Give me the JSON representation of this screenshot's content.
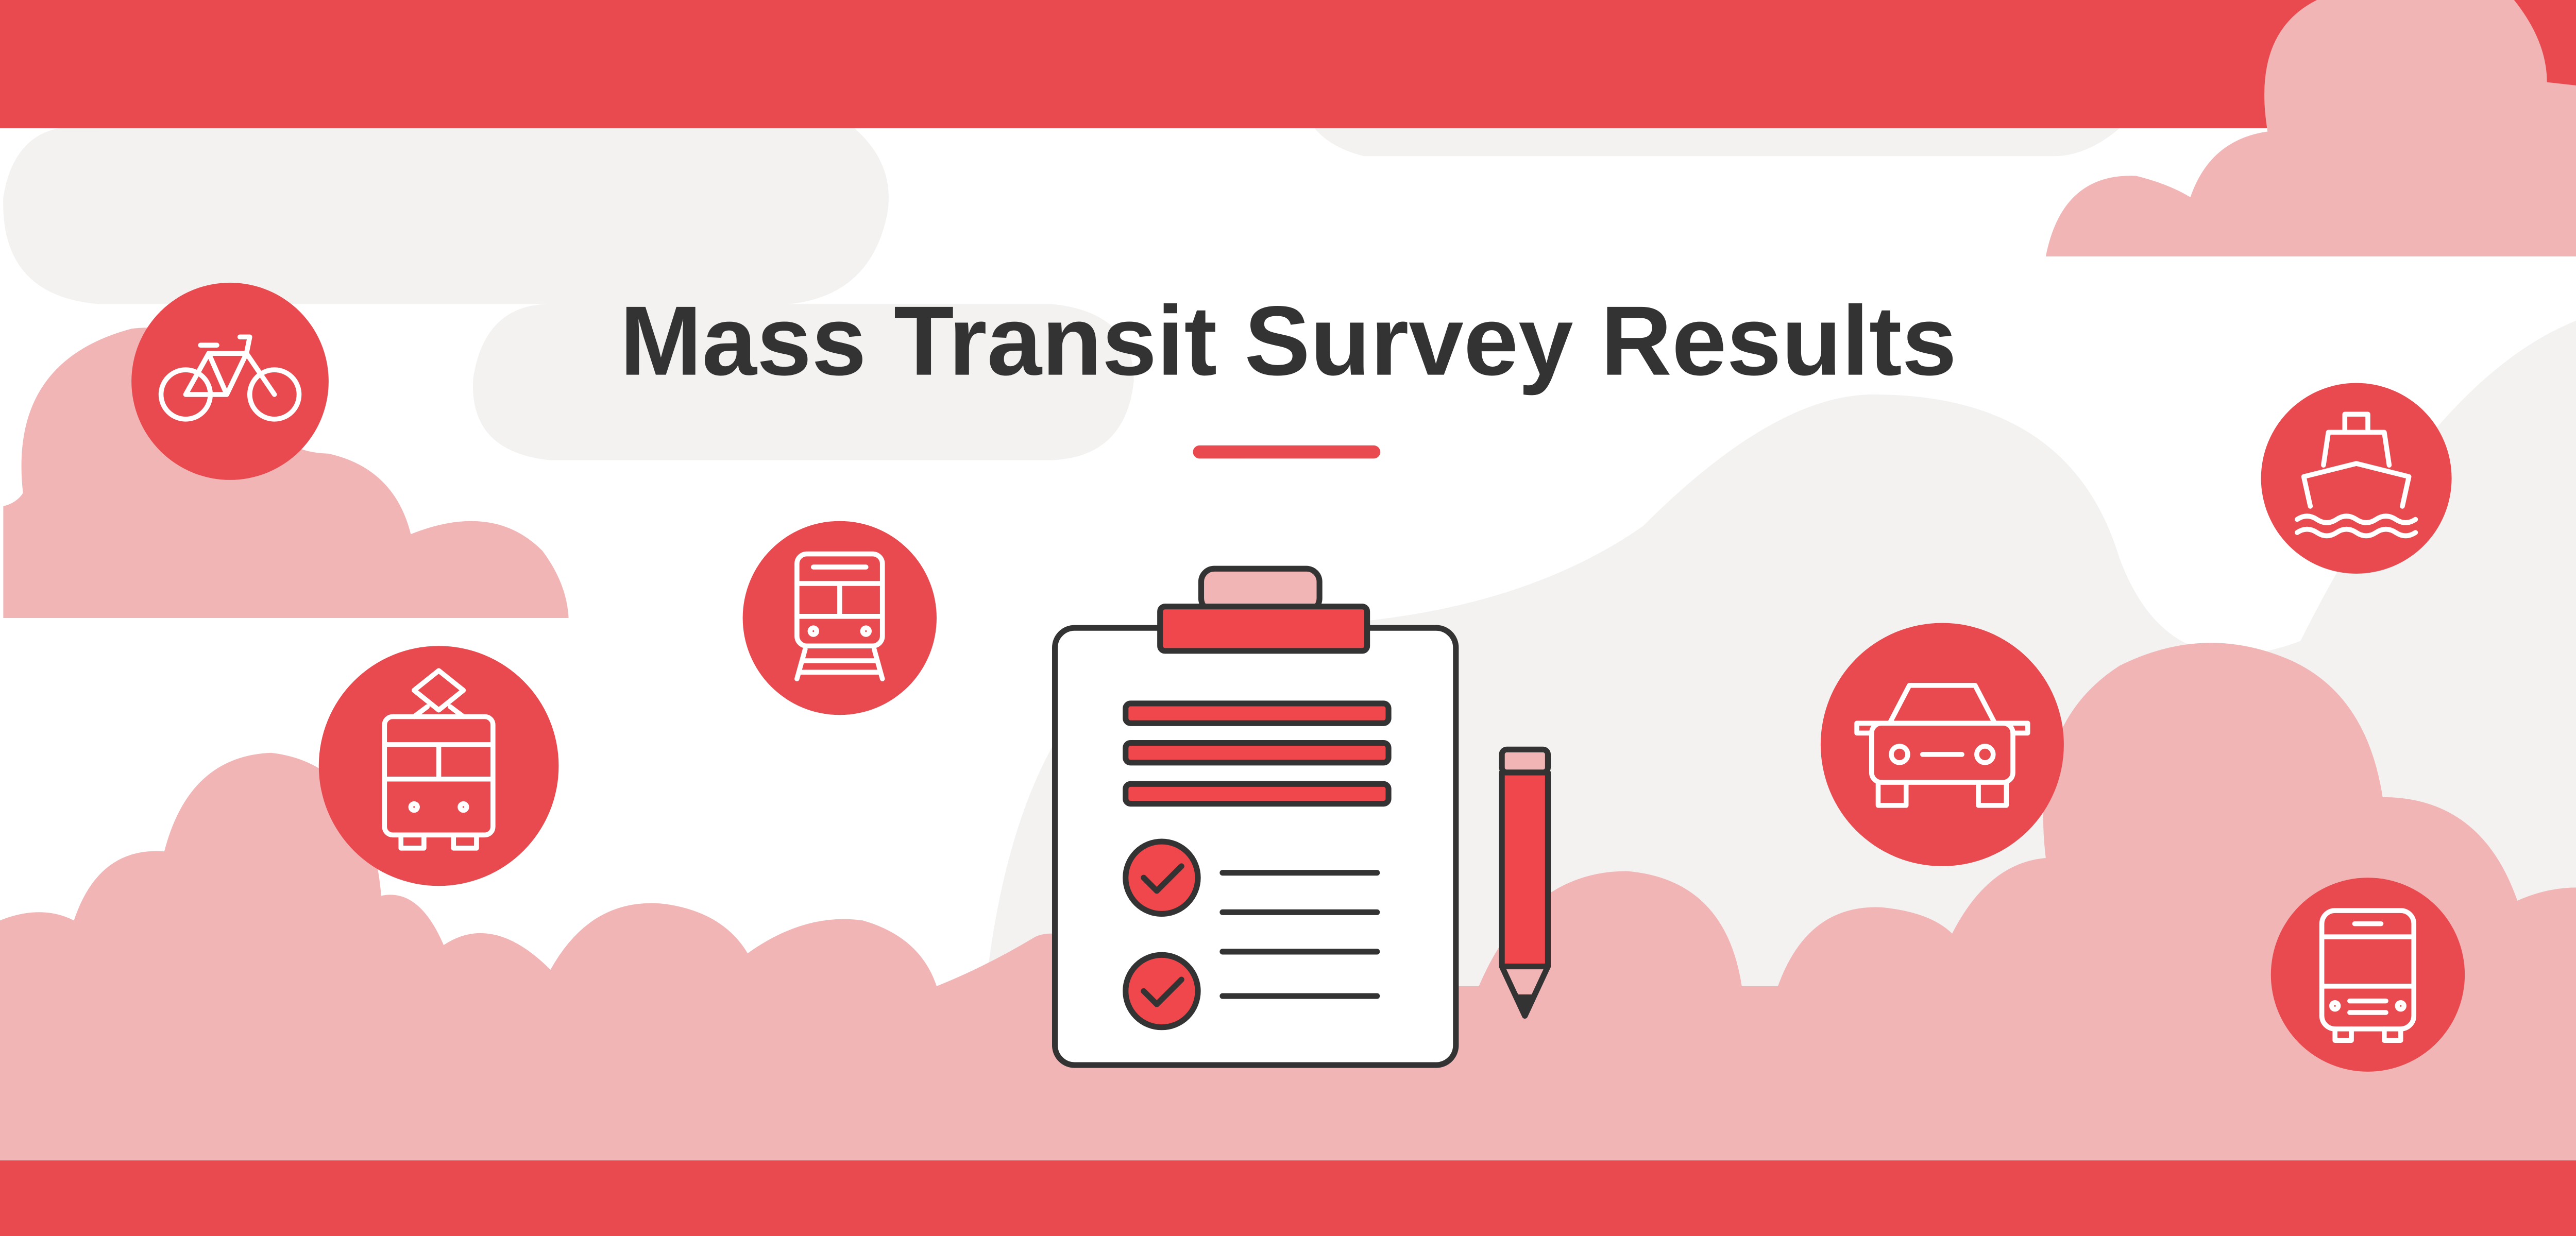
{
  "banner": {
    "title": "Mass Transit Survey Results",
    "colors": {
      "accent": "#E84A4F",
      "pink": "#F2B5B6",
      "gray": "#F3F2F0",
      "ink": "#333333"
    }
  },
  "icons": [
    "bicycle-icon",
    "train-icon",
    "tram-icon",
    "ferry-icon",
    "car-icon",
    "bus-icon",
    "clipboard-checklist-icon",
    "pencil-icon"
  ]
}
